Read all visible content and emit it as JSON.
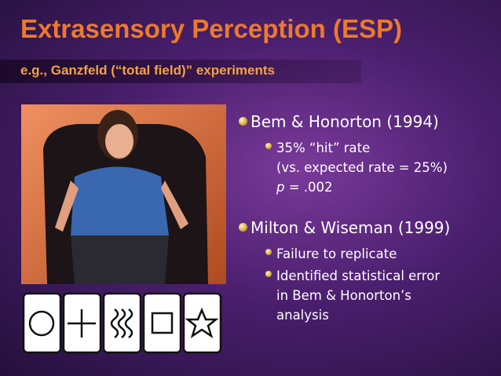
{
  "title": "Extrasensory Perception (ESP)",
  "subtitle": "e.g., Ganzfeld (“total field)” experiments",
  "bullets": [
    {
      "text": "Bem & Honorton (1994)",
      "items": [
        {
          "lines": [
            "35% “hit” rate",
            "(vs. expected rate = 25%)"
          ],
          "formula": {
            "italic": "p",
            "rest": " = .002"
          }
        }
      ]
    },
    {
      "text": "Milton & Wiseman (1999)",
      "items": [
        {
          "lines": [
            "Failure to replicate"
          ]
        },
        {
          "lines": [
            "Identified statistical error",
            "in Bem & Honorton’s",
            "analysis"
          ]
        }
      ]
    }
  ]
}
